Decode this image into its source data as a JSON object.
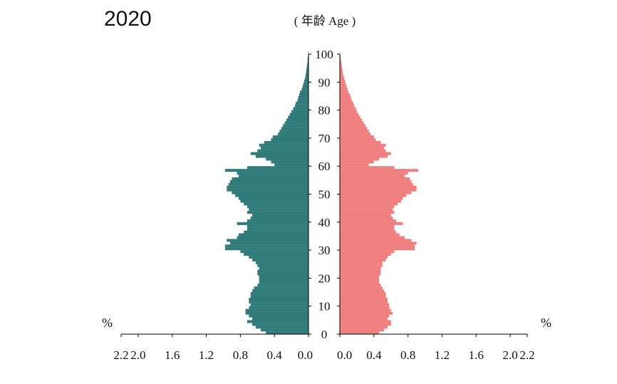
{
  "chart_data": {
    "type": "bar",
    "orientation": "horizontal",
    "title": "2020",
    "age_axis_label": "( 年龄 Age )",
    "unit_label": "%",
    "age_ticks": [
      "0",
      "10",
      "20",
      "30",
      "40",
      "50",
      "60",
      "70",
      "80",
      "90",
      "100"
    ],
    "x_ticks_left": [
      "2.2",
      "2.0",
      "1.6",
      "1.2",
      "0.8",
      "0.4",
      "0.0"
    ],
    "x_ticks_right": [
      "0.0",
      "0.4",
      "0.8",
      "1.2",
      "1.6",
      "2.0",
      "2.2"
    ],
    "xlim": [
      0,
      2.2
    ],
    "ylim": [
      0,
      100
    ],
    "colors": {
      "male": "#317b7b",
      "female": "#f08080",
      "axis": "#000000"
    },
    "ages": [
      0,
      1,
      2,
      3,
      4,
      5,
      6,
      7,
      8,
      9,
      10,
      11,
      12,
      13,
      14,
      15,
      16,
      17,
      18,
      19,
      20,
      21,
      22,
      23,
      24,
      25,
      26,
      27,
      28,
      29,
      30,
      31,
      32,
      33,
      34,
      35,
      36,
      37,
      38,
      39,
      40,
      41,
      42,
      43,
      44,
      45,
      46,
      47,
      48,
      49,
      50,
      51,
      52,
      53,
      54,
      55,
      56,
      57,
      58,
      59,
      60,
      61,
      62,
      63,
      64,
      65,
      66,
      67,
      68,
      69,
      70,
      71,
      72,
      73,
      74,
      75,
      76,
      77,
      78,
      79,
      80,
      81,
      82,
      83,
      84,
      85,
      86,
      87,
      88,
      89,
      90,
      91,
      92,
      93,
      94,
      95,
      96,
      97,
      98,
      99,
      100
    ],
    "series": [
      {
        "side": "left",
        "values": [
          0.5,
          0.56,
          0.62,
          0.66,
          0.72,
          0.66,
          0.7,
          0.74,
          0.74,
          0.7,
          0.68,
          0.7,
          0.7,
          0.68,
          0.68,
          0.66,
          0.64,
          0.6,
          0.58,
          0.58,
          0.58,
          0.6,
          0.6,
          0.58,
          0.6,
          0.62,
          0.66,
          0.7,
          0.76,
          0.8,
          0.98,
          0.98,
          0.92,
          0.96,
          0.84,
          0.82,
          0.76,
          0.72,
          0.72,
          0.84,
          0.72,
          0.68,
          0.66,
          0.72,
          0.7,
          0.72,
          0.76,
          0.8,
          0.82,
          0.86,
          0.9,
          0.96,
          0.96,
          0.94,
          0.92,
          0.9,
          0.82,
          0.84,
          0.98,
          0.72,
          0.4,
          0.44,
          0.5,
          0.62,
          0.68,
          0.6,
          0.56,
          0.58,
          0.52,
          0.44,
          0.42,
          0.36,
          0.34,
          0.32,
          0.3,
          0.28,
          0.26,
          0.24,
          0.22,
          0.2,
          0.18,
          0.16,
          0.15,
          0.13,
          0.12,
          0.11,
          0.1,
          0.08,
          0.07,
          0.06,
          0.05,
          0.04,
          0.035,
          0.03,
          0.025,
          0.02,
          0.015,
          0.01,
          0.01,
          0.005,
          0.005
        ]
      },
      {
        "side": "right",
        "values": [
          0.46,
          0.52,
          0.56,
          0.6,
          0.6,
          0.56,
          0.58,
          0.62,
          0.6,
          0.58,
          0.58,
          0.56,
          0.56,
          0.54,
          0.54,
          0.52,
          0.5,
          0.48,
          0.46,
          0.46,
          0.46,
          0.48,
          0.48,
          0.48,
          0.5,
          0.5,
          0.54,
          0.56,
          0.6,
          0.64,
          0.88,
          0.88,
          0.9,
          0.84,
          0.76,
          0.7,
          0.66,
          0.64,
          0.64,
          0.74,
          0.66,
          0.62,
          0.6,
          0.64,
          0.62,
          0.64,
          0.68,
          0.72,
          0.74,
          0.78,
          0.84,
          0.9,
          0.9,
          0.86,
          0.84,
          0.82,
          0.76,
          0.8,
          0.92,
          0.64,
          0.34,
          0.4,
          0.46,
          0.56,
          0.6,
          0.54,
          0.52,
          0.54,
          0.48,
          0.42,
          0.4,
          0.36,
          0.34,
          0.32,
          0.3,
          0.28,
          0.26,
          0.24,
          0.22,
          0.2,
          0.19,
          0.17,
          0.16,
          0.14,
          0.13,
          0.12,
          0.1,
          0.09,
          0.08,
          0.07,
          0.06,
          0.05,
          0.04,
          0.035,
          0.03,
          0.025,
          0.02,
          0.015,
          0.01,
          0.008,
          0.005
        ]
      }
    ]
  }
}
